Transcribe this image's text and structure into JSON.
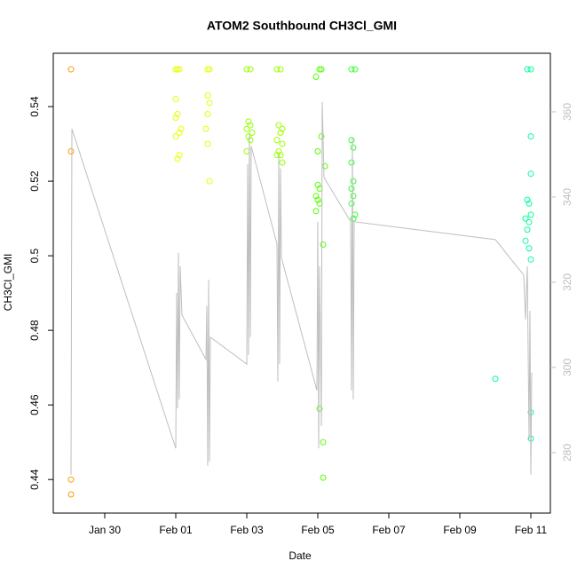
{
  "chart_data": {
    "type": "scatter",
    "title": "ATOM2 Southbound CH3Cl_GMI",
    "x_label": "Date",
    "y_label": "CH3Cl_GMI",
    "xlim": [
      28.55,
      42.55
    ],
    "xticks": [
      {
        "value": 30,
        "label": "Jan 30"
      },
      {
        "value": 32,
        "label": "Feb 01"
      },
      {
        "value": 34,
        "label": "Feb 03"
      },
      {
        "value": 36,
        "label": "Feb 05"
      },
      {
        "value": 38,
        "label": "Feb 07"
      },
      {
        "value": 40,
        "label": "Feb 09"
      },
      {
        "value": 42,
        "label": "Feb 11"
      }
    ],
    "ylim": [
      0.431,
      0.5543
    ],
    "yticks": [
      0.44,
      0.46,
      0.48,
      0.5,
      0.52,
      0.54
    ],
    "y2lim": [
      265.8,
      373.75
    ],
    "y2ticks": [
      280,
      300,
      320,
      340,
      360
    ],
    "series": [
      {
        "color": "#ff9900",
        "x": [
          29.05,
          29.05,
          29.05,
          29.05
        ],
        "values": [
          0.55,
          0.528,
          0.44,
          0.436
        ]
      },
      {
        "color": "#e6ff00",
        "x": [
          32.0,
          32.05,
          32.1,
          32.0,
          32.05,
          32.0,
          32.15,
          32.1,
          32.0,
          32.1,
          32.05,
          32.9,
          32.95,
          32.9,
          32.95,
          32.9,
          32.85,
          32.9,
          32.95
        ],
        "values": [
          0.55,
          0.55,
          0.55,
          0.542,
          0.538,
          0.537,
          0.534,
          0.533,
          0.532,
          0.527,
          0.526,
          0.55,
          0.55,
          0.543,
          0.541,
          0.538,
          0.534,
          0.53,
          0.52
        ]
      },
      {
        "color": "#99ff00",
        "x": [
          34.0,
          34.1,
          34.05,
          34.1,
          34.0,
          34.15,
          34.05,
          34.1,
          34.0,
          34.85,
          34.95,
          34.9,
          35.0,
          34.95,
          34.85,
          35.0,
          34.9,
          34.85,
          34.95,
          35.0
        ],
        "values": [
          0.55,
          0.55,
          0.536,
          0.535,
          0.534,
          0.533,
          0.532,
          0.531,
          0.528,
          0.55,
          0.55,
          0.535,
          0.534,
          0.533,
          0.531,
          0.53,
          0.528,
          0.527,
          0.527,
          0.525
        ]
      },
      {
        "color": "#55ff00",
        "x": [
          36.05,
          36.1,
          35.95,
          36.1,
          36.0,
          36.2,
          36.0,
          36.05,
          35.95,
          36.0,
          36.05,
          35.95,
          36.15,
          36.05,
          36.15,
          36.15
        ],
        "values": [
          0.55,
          0.55,
          0.548,
          0.532,
          0.528,
          0.524,
          0.519,
          0.518,
          0.516,
          0.515,
          0.514,
          0.512,
          0.503,
          0.459,
          0.45,
          0.4405
        ]
      },
      {
        "color": "#33ff33",
        "x": [
          36.95,
          37.05,
          36.95,
          37.0,
          36.95,
          37.0,
          36.95,
          37.0,
          36.95,
          37.05,
          37.0
        ],
        "values": [
          0.55,
          0.55,
          0.531,
          0.529,
          0.525,
          0.52,
          0.518,
          0.516,
          0.514,
          0.511,
          0.51
        ]
      },
      {
        "color": "#00ff99",
        "x": [
          41.0,
          41.9,
          42.0,
          42.0,
          42.0,
          41.9,
          41.95,
          42.0,
          41.85,
          41.95,
          41.9,
          41.85,
          41.95,
          42.0,
          42.0,
          42.0
        ],
        "values": [
          0.467,
          0.55,
          0.55,
          0.532,
          0.522,
          0.515,
          0.514,
          0.511,
          0.51,
          0.509,
          0.507,
          0.504,
          0.502,
          0.499,
          0.458,
          0.451
        ]
      },
      {
        "color": "#bebebe",
        "axis": "y2",
        "line": true,
        "x": [
          29.05,
          29.075,
          32.0,
          32.025,
          32.05,
          32.075,
          32.1,
          32.125,
          32.175,
          32.85,
          32.875,
          32.9,
          32.925,
          32.95,
          32.975,
          34.0,
          34.025,
          34.05,
          34.075,
          34.1,
          34.125,
          34.85,
          34.875,
          34.9,
          34.925,
          34.95,
          34.975,
          35.975,
          36.0,
          36.025,
          36.05,
          36.1,
          36.125,
          36.175,
          36.925,
          36.95,
          36.975,
          37.0,
          37.025,
          41.0,
          41.8,
          41.85,
          41.9,
          41.95,
          41.975,
          42.0,
          42.025
        ],
        "values": [
          274.8,
          356.0,
          281.0,
          317.5,
          290.4,
          326.9,
          292.5,
          323.75,
          312.3,
          301.9,
          314.4,
          276.9,
          320.6,
          277.9,
          307.1,
          300.8,
          347.7,
          302.9,
          355.0,
          307.1,
          351.9,
          329.0,
          296.7,
          349.8,
          300.8,
          346.7,
          325.8,
          294.6,
          334.2,
          281.0,
          323.75,
          286.25,
          362.3,
          344.6,
          334.2,
          294.6,
          354.0,
          292.5,
          334.2,
          330.0,
          321.7,
          311.25,
          323.75,
          283.1,
          313.3,
          274.8,
          298.75
        ]
      }
    ]
  }
}
